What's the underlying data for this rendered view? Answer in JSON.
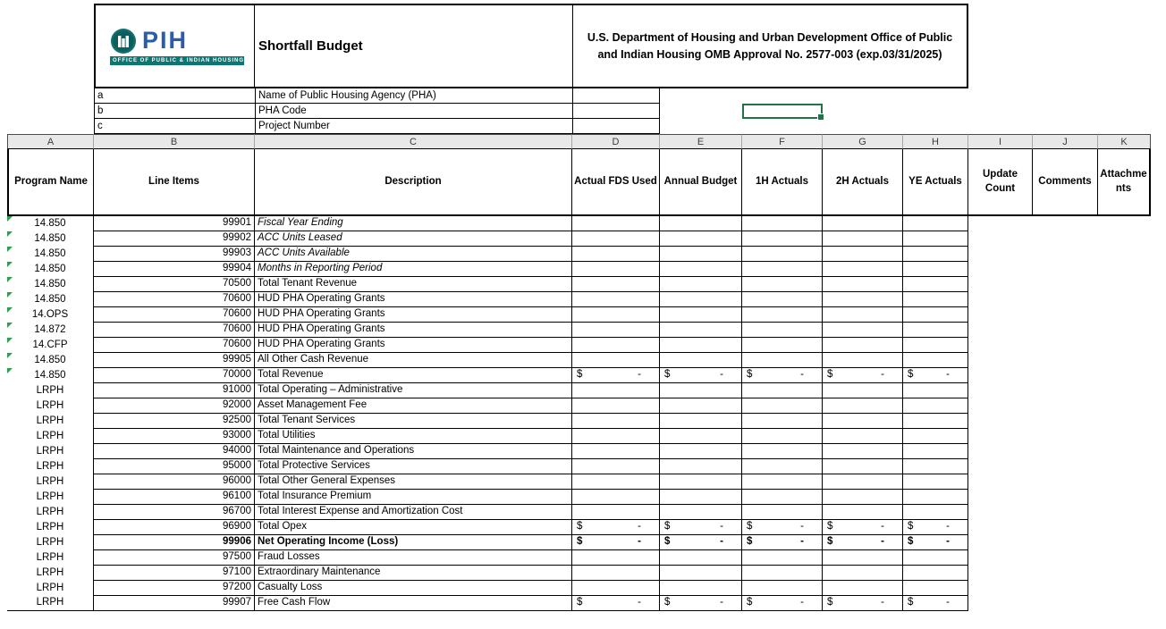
{
  "money": {
    "symbol": "$",
    "dash": "-"
  },
  "colors": {
    "selection_green": "#217346",
    "flag_green": "#2f9e4f",
    "brand_blue": "#2b5ca8",
    "brand_teal": "#0c7672",
    "column_band_gray": "#e8e8e8"
  },
  "logo": {
    "brand": "PIH",
    "banner": "OFFICE OF PUBLIC & INDIAN HOUSING"
  },
  "header": {
    "title": "Shortfall Budget",
    "agency_text": "U.S. Department of Housing and Urban Development Office of Public and Indian Housing OMB Approval No. 2577-003 (exp.03/31/2025)"
  },
  "form_fields": [
    {
      "key": "a",
      "label": "Name of Public Housing Agency (PHA)",
      "value": ""
    },
    {
      "key": "b",
      "label": "PHA Code",
      "value": ""
    },
    {
      "key": "c",
      "label": "Project Number",
      "value": ""
    }
  ],
  "spreadsheet": {
    "column_letters": [
      "A",
      "B",
      "C",
      "D",
      "E",
      "F",
      "G",
      "H",
      "I",
      "J",
      "K"
    ],
    "selected_cell": {
      "column": "F",
      "row_label": "b"
    }
  },
  "table": {
    "headers": [
      "Program Name",
      "Line Items",
      "Description",
      "Actual FDS Used",
      "Annual Budget",
      "1H Actuals",
      "2H Actuals",
      "YE Actuals",
      "Update Count",
      "Comments",
      "Attachments"
    ],
    "rows": [
      {
        "program": "14.850",
        "line": "99901",
        "desc": "Fiscal Year Ending",
        "italic": true,
        "flag": true,
        "dollars": false
      },
      {
        "program": "14.850",
        "line": "99902",
        "desc": "ACC Units Leased",
        "italic": true,
        "flag": true,
        "dollars": false
      },
      {
        "program": "14.850",
        "line": "99903",
        "desc": "ACC Units Available",
        "italic": true,
        "flag": true,
        "dollars": false
      },
      {
        "program": "14.850",
        "line": "99904",
        "desc": "Months in Reporting Period",
        "italic": true,
        "flag": true,
        "dollars": false
      },
      {
        "program": "14.850",
        "line": "70500",
        "desc": "Total Tenant Revenue",
        "flag": true,
        "dollars": false
      },
      {
        "program": "14.850",
        "line": "70600",
        "desc": "HUD PHA Operating Grants",
        "flag": true,
        "dollars": false
      },
      {
        "program": "14.OPS",
        "line": "70600",
        "desc": "HUD PHA Operating Grants",
        "flag": true,
        "dollars": false
      },
      {
        "program": "14.872",
        "line": "70600",
        "desc": "HUD PHA Operating Grants",
        "flag": true,
        "dollars": false
      },
      {
        "program": "14.CFP",
        "line": "70600",
        "desc": "HUD PHA Operating Grants",
        "flag": true,
        "dollars": false
      },
      {
        "program": "14.850",
        "line": "99905",
        "desc": "All Other Cash Revenue",
        "flag": true,
        "dollars": false
      },
      {
        "program": "14.850",
        "line": "70000",
        "desc": "Total Revenue",
        "flag": true,
        "dollars": true
      },
      {
        "program": "LRPH",
        "line": "91000",
        "desc": "Total Operating – Administrative",
        "dollars": false
      },
      {
        "program": "LRPH",
        "line": "92000",
        "desc": "Asset Management Fee",
        "dollars": false
      },
      {
        "program": "LRPH",
        "line": "92500",
        "desc": "Total Tenant Services",
        "dollars": false
      },
      {
        "program": "LRPH",
        "line": "93000",
        "desc": "Total Utilities",
        "dollars": false
      },
      {
        "program": "LRPH",
        "line": "94000",
        "desc": "Total Maintenance and Operations",
        "dollars": false
      },
      {
        "program": "LRPH",
        "line": "95000",
        "desc": "Total Protective Services",
        "dollars": false
      },
      {
        "program": "LRPH",
        "line": "96000",
        "desc": "Total Other General Expenses",
        "dollars": false
      },
      {
        "program": "LRPH",
        "line": "96100",
        "desc": "Total Insurance Premium",
        "dollars": false
      },
      {
        "program": "LRPH",
        "line": "96700",
        "desc": "Total Interest Expense and Amortization Cost",
        "dollars": false
      },
      {
        "program": "LRPH",
        "line": "96900",
        "desc": "Total Opex",
        "dollars": true
      },
      {
        "program": "LRPH",
        "line": "99906",
        "desc": "Net Operating Income (Loss)",
        "bold": true,
        "dollars": true
      },
      {
        "program": "LRPH",
        "line": "97500",
        "desc": "Fraud Losses",
        "dollars": false
      },
      {
        "program": "LRPH",
        "line": "97100",
        "desc": "Extraordinary Maintenance",
        "dollars": false
      },
      {
        "program": "LRPH",
        "line": "97200",
        "desc": "Casualty Loss",
        "dollars": false
      },
      {
        "program": "LRPH",
        "line": "99907",
        "desc": "Free Cash Flow",
        "dollars": true
      }
    ]
  }
}
